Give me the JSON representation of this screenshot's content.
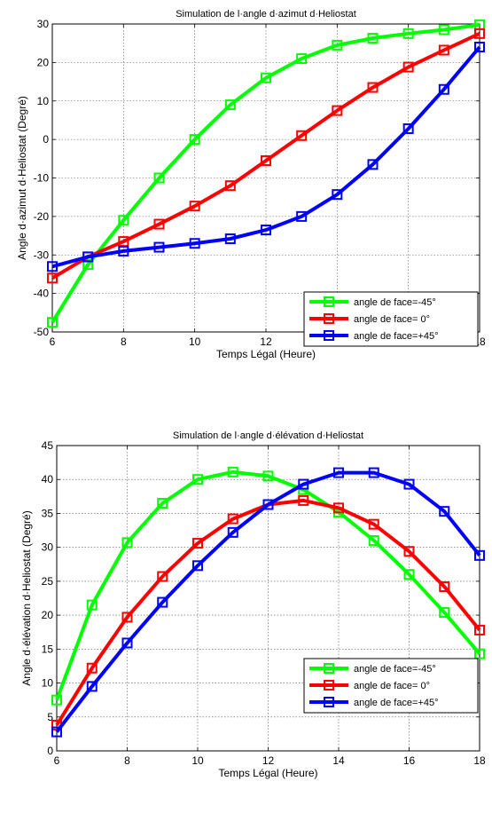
{
  "chart_data": [
    {
      "type": "line",
      "title": "Simulation de l·angle d·azimut d·Heliostat",
      "xlabel": "Temps Légal (Heure)",
      "ylabel": "Angle d·azimut d·Heliostat (Degré)",
      "xlim": [
        6,
        18
      ],
      "ylim": [
        -50,
        30
      ],
      "xticks": [
        6,
        8,
        10,
        12,
        14,
        16,
        18
      ],
      "yticks": [
        -50,
        -40,
        -30,
        -20,
        -10,
        0,
        10,
        20,
        30
      ],
      "grid": true,
      "legend_position": "bottom-right",
      "x": [
        6,
        7,
        8,
        9,
        10,
        11,
        12,
        13,
        14,
        15,
        16,
        17,
        18
      ],
      "series": [
        {
          "name": "angle de face=-45°",
          "color": "#00ff00",
          "values": [
            -47.5,
            -32.5,
            -21,
            -10,
            0,
            9,
            16,
            21,
            24.5,
            26.3,
            27.5,
            28.5,
            29.8
          ]
        },
        {
          "name": "angle de face= 0°",
          "color": "#ff0000",
          "values": [
            -36,
            -30.5,
            -26.5,
            -22,
            -17.3,
            -12,
            -5.5,
            1,
            7.5,
            13.5,
            18.8,
            23.2,
            27.5
          ]
        },
        {
          "name": "angle de face=+45°",
          "color": "#0000ff",
          "values": [
            -33,
            -30.5,
            -29,
            -28,
            -27,
            -25.8,
            -23.5,
            -20,
            -14.3,
            -6.5,
            2.8,
            13,
            24
          ]
        }
      ]
    },
    {
      "type": "line",
      "title": "Simulation de l·angle d·élévation d·Heliostat",
      "xlabel": "Temps Légal (Heure)",
      "ylabel": "Angle d·élévation d·Heliostat (Degré)",
      "xlim": [
        6,
        18
      ],
      "ylim": [
        0,
        45
      ],
      "xticks": [
        6,
        8,
        10,
        12,
        14,
        16,
        18
      ],
      "yticks": [
        0,
        5,
        10,
        15,
        20,
        25,
        30,
        35,
        40,
        45
      ],
      "grid": true,
      "legend_position": "bottom-right",
      "x": [
        6,
        7,
        8,
        9,
        10,
        11,
        12,
        13,
        14,
        15,
        16,
        17,
        18
      ],
      "series": [
        {
          "name": "angle de face=-45°",
          "color": "#00ff00",
          "values": [
            7.5,
            21.5,
            30.7,
            36.5,
            40,
            41.1,
            40.5,
            38.5,
            35.2,
            31,
            26,
            20.4,
            14.3
          ]
        },
        {
          "name": "angle de face= 0°",
          "color": "#ff0000",
          "values": [
            3.8,
            12.2,
            19.7,
            25.7,
            30.6,
            34.2,
            36.3,
            36.9,
            35.8,
            33.4,
            29.4,
            24.2,
            17.8
          ]
        },
        {
          "name": "angle de face=+45°",
          "color": "#0000ff",
          "values": [
            2.8,
            9.5,
            15.9,
            21.9,
            27.3,
            32.2,
            36.3,
            39.3,
            41,
            41,
            39.3,
            35.3,
            28.8
          ]
        }
      ]
    }
  ]
}
